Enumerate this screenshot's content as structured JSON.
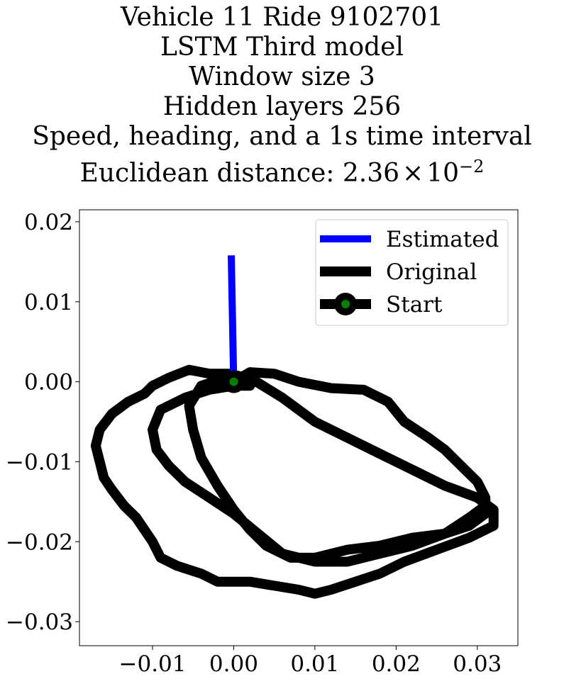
{
  "chart_data": {
    "type": "line",
    "title_lines": [
      "Vehicle 11 Ride 9102701",
      "LSTM Third model",
      "Window size 3",
      "Hidden layers 256",
      "Speed, heading, and a 1s time interval"
    ],
    "title_distance_prefix": "Euclidean distance: ",
    "title_distance_mantissa": "2.36",
    "title_distance_times": "×",
    "title_distance_base": "10",
    "title_distance_exp": "−2",
    "xlim": [
      -0.019,
      0.035
    ],
    "ylim": [
      -0.033,
      0.0215
    ],
    "xticks": [
      -0.01,
      0.0,
      0.01,
      0.02,
      0.03
    ],
    "xtick_labels": [
      "−0.01",
      "0.00",
      "0.01",
      "0.02",
      "0.03"
    ],
    "yticks": [
      0.02,
      0.01,
      0.0,
      -0.01,
      -0.02,
      -0.03
    ],
    "ytick_labels": [
      "0.02",
      "0.01",
      "0.00",
      "−0.01",
      "−0.02",
      "−0.03"
    ],
    "legend_position": "upper right",
    "series": [
      {
        "name": "Estimated",
        "color": "#0000ff",
        "points": [
          [
            0.0,
            0.0
          ],
          [
            -0.0003,
            0.0158
          ]
        ]
      },
      {
        "name": "Original",
        "color": "#000000",
        "points": [
          [
            0.0,
            0.0
          ],
          [
            0.002,
            0.0012
          ],
          [
            0.005,
            0.001
          ],
          [
            0.008,
            0.0
          ],
          [
            0.012,
            -0.0008
          ],
          [
            0.016,
            -0.001
          ],
          [
            0.019,
            -0.0025
          ],
          [
            0.021,
            -0.005
          ],
          [
            0.024,
            -0.007
          ],
          [
            0.026,
            -0.0085
          ],
          [
            0.028,
            -0.0105
          ],
          [
            0.03,
            -0.0125
          ],
          [
            0.031,
            -0.0145
          ],
          [
            0.031,
            -0.0165
          ],
          [
            0.029,
            -0.018
          ],
          [
            0.026,
            -0.019
          ],
          [
            0.022,
            -0.0195
          ],
          [
            0.018,
            -0.0205
          ],
          [
            0.014,
            -0.021
          ],
          [
            0.01,
            -0.022
          ],
          [
            0.007,
            -0.022
          ],
          [
            0.004,
            -0.0205
          ],
          [
            0.002,
            -0.0185
          ],
          [
            0.0,
            -0.016
          ],
          [
            -0.002,
            -0.013
          ],
          [
            -0.004,
            -0.0095
          ],
          [
            -0.005,
            -0.006
          ],
          [
            -0.0055,
            -0.003
          ],
          [
            -0.004,
            -0.0005
          ],
          [
            -0.001,
            0.0005
          ],
          [
            0.002,
            0.0005
          ],
          [
            0.006,
            -0.002
          ],
          [
            0.01,
            -0.005
          ],
          [
            0.014,
            -0.007
          ],
          [
            0.018,
            -0.009
          ],
          [
            0.022,
            -0.011
          ],
          [
            0.026,
            -0.013
          ],
          [
            0.03,
            -0.0145
          ],
          [
            0.032,
            -0.016
          ],
          [
            0.032,
            -0.018
          ],
          [
            0.029,
            -0.0195
          ],
          [
            0.025,
            -0.021
          ],
          [
            0.021,
            -0.0225
          ],
          [
            0.018,
            -0.024
          ],
          [
            0.015,
            -0.025
          ],
          [
            0.012,
            -0.026
          ],
          [
            0.01,
            -0.0265
          ],
          [
            0.008,
            -0.026
          ],
          [
            0.005,
            -0.0255
          ],
          [
            0.002,
            -0.025
          ],
          [
            -0.002,
            -0.025
          ],
          [
            -0.004,
            -0.024
          ],
          [
            -0.007,
            -0.023
          ],
          [
            -0.009,
            -0.022
          ],
          [
            -0.01,
            -0.02
          ],
          [
            -0.011,
            -0.0185
          ],
          [
            -0.012,
            -0.017
          ],
          [
            -0.0135,
            -0.0155
          ],
          [
            -0.015,
            -0.0135
          ],
          [
            -0.016,
            -0.012
          ],
          [
            -0.0165,
            -0.01
          ],
          [
            -0.017,
            -0.008
          ],
          [
            -0.0165,
            -0.006
          ],
          [
            -0.015,
            -0.004
          ],
          [
            -0.013,
            -0.0025
          ],
          [
            -0.011,
            -0.0015
          ],
          [
            -0.01,
            -0.0005
          ],
          [
            -0.008,
            0.0005
          ],
          [
            -0.0055,
            0.0015
          ],
          [
            -0.003,
            0.001
          ],
          [
            -0.0005,
            0.001
          ],
          [
            0.0015,
            0.0005
          ],
          [
            0.002,
            -0.0005
          ],
          [
            0.0,
            -0.0005
          ],
          [
            -0.003,
            -0.001
          ],
          [
            -0.006,
            -0.002
          ],
          [
            -0.009,
            -0.0035
          ],
          [
            -0.01,
            -0.006
          ],
          [
            -0.0095,
            -0.0085
          ],
          [
            -0.008,
            -0.0105
          ],
          [
            -0.006,
            -0.0125
          ],
          [
            -0.003,
            -0.0145
          ],
          [
            0.0,
            -0.0165
          ],
          [
            0.003,
            -0.019
          ],
          [
            0.006,
            -0.0215
          ],
          [
            0.01,
            -0.0225
          ],
          [
            0.014,
            -0.0225
          ],
          [
            0.018,
            -0.0215
          ],
          [
            0.022,
            -0.0205
          ],
          [
            0.026,
            -0.019
          ],
          [
            0.029,
            -0.017
          ],
          [
            0.031,
            -0.0155
          ]
        ]
      },
      {
        "name": "Start",
        "color": "#000000",
        "marker_color": "#008000",
        "points": [
          [
            0.0,
            0.0
          ]
        ]
      }
    ]
  }
}
